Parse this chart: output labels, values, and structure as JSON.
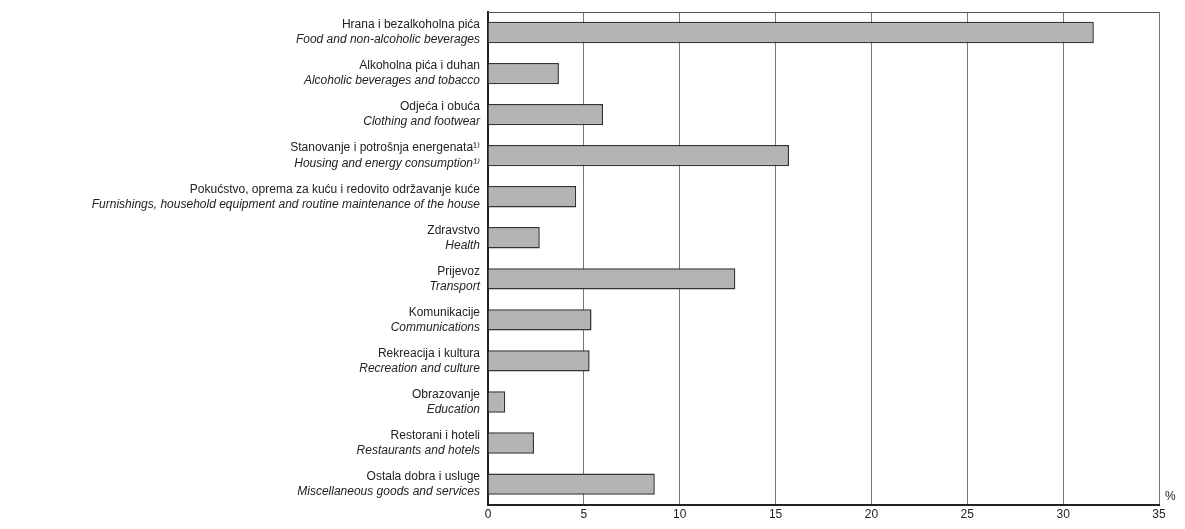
{
  "chart_data": {
    "type": "bar",
    "orientation": "horizontal",
    "categories": [
      "Hrana i bezalkoholna pića\nFood and non-alcoholic beverages",
      "Alkoholna pića i duhan\nAlcoholic beverages and tobacco",
      "Odjeća i obuća\nClothing and footwear",
      "Stanovanje i potrošnja energenata¹⁾\nHousing and energy consumption¹⁾",
      "Pokućstvo, oprema za kuću i redovito održavanje kuće\nFurnishings, household equipment and routine maintenance of the house",
      "Zdravstvo\nHealth",
      "Prijevoz\nTransport",
      "Komunikacije\nCommunications",
      "Rekreacija i kultura\nRecreation and culture",
      "Obrazovanje\nEducation",
      "Restorani i hoteli\nRestaurants and hotels",
      "Ostala dobra i usluge\nMiscellaneous goods and services"
    ],
    "values": [
      31.6,
      3.7,
      6.0,
      15.7,
      4.6,
      2.7,
      12.9,
      5.4,
      5.3,
      0.9,
      2.4,
      8.7
    ],
    "color": "#b4b4b4",
    "xlabel": "%",
    "xlim": [
      0,
      35
    ],
    "xticks": [
      0,
      5,
      10,
      15,
      20,
      25,
      30,
      35
    ],
    "grid": "x",
    "legend": false
  }
}
